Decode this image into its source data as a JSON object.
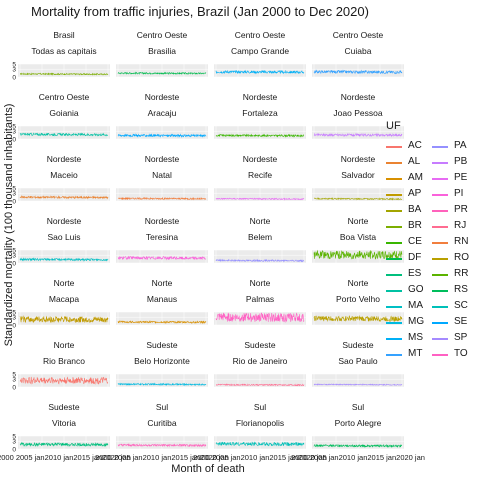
{
  "chart_data": {
    "type": "line",
    "title": "Mortality from traffic injuries, Brazil (Jan 2000 to Dec 2020)",
    "xlabel": "Month of death",
    "ylabel": "Standardized  mortality (100 thousand inhabitants)",
    "x_axis_text": "2000 2005 jan2010 jan2015 jan2020 jan",
    "y_tick_labels": [
      "5",
      "3",
      "0"
    ],
    "ylim": [
      0,
      5
    ],
    "legend_title": "UF",
    "legend_position": "right",
    "grid": true,
    "panels": [
      {
        "region": "Brasil",
        "name": "Todas as capitais",
        "uf": "BR",
        "level": 1.2,
        "noise": 0.25
      },
      {
        "region": "Centro Oeste",
        "name": "Brasilia",
        "uf": "DF",
        "level": 1.5,
        "noise": 0.3
      },
      {
        "region": "Centro Oeste",
        "name": "Campo Grande",
        "uf": "MS",
        "level": 2.0,
        "noise": 0.5
      },
      {
        "region": "Centro Oeste",
        "name": "Cuiaba",
        "uf": "MT",
        "level": 2.0,
        "noise": 0.55
      },
      {
        "region": "Centro Oeste",
        "name": "Goiania",
        "uf": "GO",
        "level": 1.8,
        "noise": 0.45
      },
      {
        "region": "Nordeste",
        "name": "Aracaju",
        "uf": "SE",
        "level": 1.4,
        "noise": 0.45
      },
      {
        "region": "Nordeste",
        "name": "Fortaleza",
        "uf": "CE",
        "level": 1.4,
        "noise": 0.35
      },
      {
        "region": "Nordeste",
        "name": "Joao Pessoa",
        "uf": "PB",
        "level": 1.6,
        "noise": 0.45
      },
      {
        "region": "Nordeste",
        "name": "Maceio",
        "uf": "AL",
        "level": 1.5,
        "noise": 0.4
      },
      {
        "region": "Nordeste",
        "name": "Natal",
        "uf": "RN",
        "level": 1.0,
        "noise": 0.3
      },
      {
        "region": "Nordeste",
        "name": "Recife",
        "uf": "PE",
        "level": 0.9,
        "noise": 0.25
      },
      {
        "region": "Nordeste",
        "name": "Salvador",
        "uf": "BA",
        "level": 0.9,
        "noise": 0.25
      },
      {
        "region": "Nordeste",
        "name": "Sao Luis",
        "uf": "MA",
        "level": 1.4,
        "noise": 0.4
      },
      {
        "region": "Nordeste",
        "name": "Teresina",
        "uf": "PI",
        "level": 2.0,
        "noise": 0.55
      },
      {
        "region": "Norte",
        "name": "Belem",
        "uf": "PA",
        "level": 1.0,
        "noise": 0.3
      },
      {
        "region": "Norte",
        "name": "Boa Vista",
        "uf": "RR",
        "level": 3.2,
        "noise": 1.6
      },
      {
        "region": "Norte",
        "name": "Macapa",
        "uf": "AP",
        "level": 2.2,
        "noise": 1.2
      },
      {
        "region": "Norte",
        "name": "Manaus",
        "uf": "AM",
        "level": 1.2,
        "noise": 0.35
      },
      {
        "region": "Norte",
        "name": "Palmas",
        "uf": "TO",
        "level": 3.0,
        "noise": 1.7
      },
      {
        "region": "Norte",
        "name": "Porto Velho",
        "uf": "RO",
        "level": 2.5,
        "noise": 1.0
      },
      {
        "region": "Norte",
        "name": "Rio Branco",
        "uf": "AC",
        "level": 2.6,
        "noise": 1.3
      },
      {
        "region": "Sudeste",
        "name": "Belo Horizonte",
        "uf": "MG",
        "level": 1.1,
        "noise": 0.3
      },
      {
        "region": "Sudeste",
        "name": "Rio de Janeiro",
        "uf": "RJ",
        "level": 0.9,
        "noise": 0.25
      },
      {
        "region": "Sudeste",
        "name": "Sao Paulo",
        "uf": "SP",
        "level": 1.0,
        "noise": 0.2
      },
      {
        "region": "Sudeste",
        "name": "Vitoria",
        "uf": "ES",
        "level": 1.8,
        "noise": 0.6
      },
      {
        "region": "Sul",
        "name": "Curitiba",
        "uf": "PR",
        "level": 1.5,
        "noise": 0.4
      },
      {
        "region": "Sul",
        "name": "Florianopolis",
        "uf": "SC",
        "level": 2.0,
        "noise": 0.7
      },
      {
        "region": "Sul",
        "name": "Porto Alegre",
        "uf": "RS",
        "level": 1.3,
        "noise": 0.4
      }
    ],
    "legend": [
      {
        "uf": "AC",
        "color": "#F8766D"
      },
      {
        "uf": "AL",
        "color": "#EA8331"
      },
      {
        "uf": "AM",
        "color": "#D89000"
      },
      {
        "uf": "AP",
        "color": "#C09B00"
      },
      {
        "uf": "BA",
        "color": "#A3A500"
      },
      {
        "uf": "BR",
        "color": "#7CAE00"
      },
      {
        "uf": "CE",
        "color": "#39B600"
      },
      {
        "uf": "DF",
        "color": "#00BB4E"
      },
      {
        "uf": "ES",
        "color": "#00BF7D"
      },
      {
        "uf": "GO",
        "color": "#00C1A3"
      },
      {
        "uf": "MA",
        "color": "#00BFC4"
      },
      {
        "uf": "MG",
        "color": "#00BAE0"
      },
      {
        "uf": "MS",
        "color": "#00B0F6"
      },
      {
        "uf": "MT",
        "color": "#35A2FF"
      },
      {
        "uf": "PA",
        "color": "#9590FF"
      },
      {
        "uf": "PB",
        "color": "#C77CFF"
      },
      {
        "uf": "PE",
        "color": "#E76BF3"
      },
      {
        "uf": "PI",
        "color": "#FA62DB"
      },
      {
        "uf": "PR",
        "color": "#FF62BC"
      },
      {
        "uf": "RJ",
        "color": "#FF6C91"
      },
      {
        "uf": "RN",
        "color": "#F17E3E"
      },
      {
        "uf": "RO",
        "color": "#B9A000"
      },
      {
        "uf": "RR",
        "color": "#5BB300"
      },
      {
        "uf": "RS",
        "color": "#00BD5C"
      },
      {
        "uf": "SC",
        "color": "#00C0B8"
      },
      {
        "uf": "SE",
        "color": "#00A9FF"
      },
      {
        "uf": "SP",
        "color": "#A58AFF"
      },
      {
        "uf": "TO",
        "color": "#FF61C3"
      }
    ]
  }
}
